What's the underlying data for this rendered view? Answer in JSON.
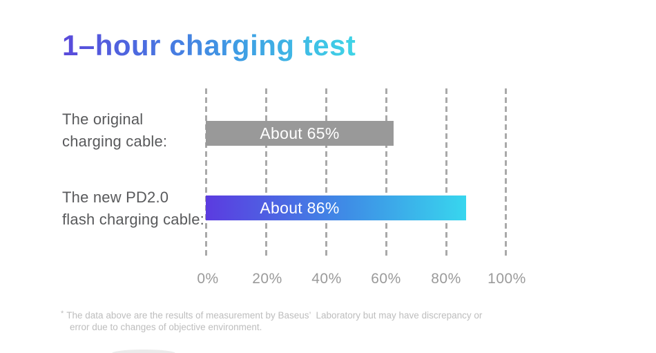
{
  "title": {
    "text": "1–hour charging test",
    "gradient_from": "#5a49da",
    "gradient_mid": "#3f9ae4",
    "gradient_to": "#3fd4e6"
  },
  "chart_data": {
    "type": "bar",
    "orientation": "horizontal",
    "title": "1–hour charging test",
    "categories": [
      "The original charging cable:",
      "The new PD2.0 flash charging cable:"
    ],
    "values": [
      65,
      86
    ],
    "bar_labels": [
      "About 65%",
      "About 86%"
    ],
    "rendered_bar_percent": [
      63,
      87
    ],
    "x_ticks": [
      "0%",
      "20%",
      "40%",
      "60%",
      "80%",
      "100%"
    ],
    "xlim": [
      0,
      100
    ],
    "grid": "dashed-vertical",
    "legend": "none",
    "bar_colors": {
      "original": "#999999",
      "pd20_gradient_from": "#5b3be0",
      "pd20_gradient_to": "#38d6ee"
    },
    "bar_text_color": "#ffffff"
  },
  "rows": [
    {
      "label_line1": "The original",
      "label_line2": "charging cable:",
      "bar_text": "About 65%"
    },
    {
      "label_line1": "The new PD2.0",
      "label_line2": "flash charging cable:",
      "bar_text": "About 86%"
    }
  ],
  "ticks": {
    "t0": "0%",
    "t1": "20%",
    "t2": "40%",
    "t3": "60%",
    "t4": "80%",
    "t5": "100%"
  },
  "footnote": {
    "marker": "*",
    "line1": "The data above are the results of measurement by Baseus’  Laboratory but may have discrepancy or",
    "line2": "error due to changes of objective environment."
  }
}
